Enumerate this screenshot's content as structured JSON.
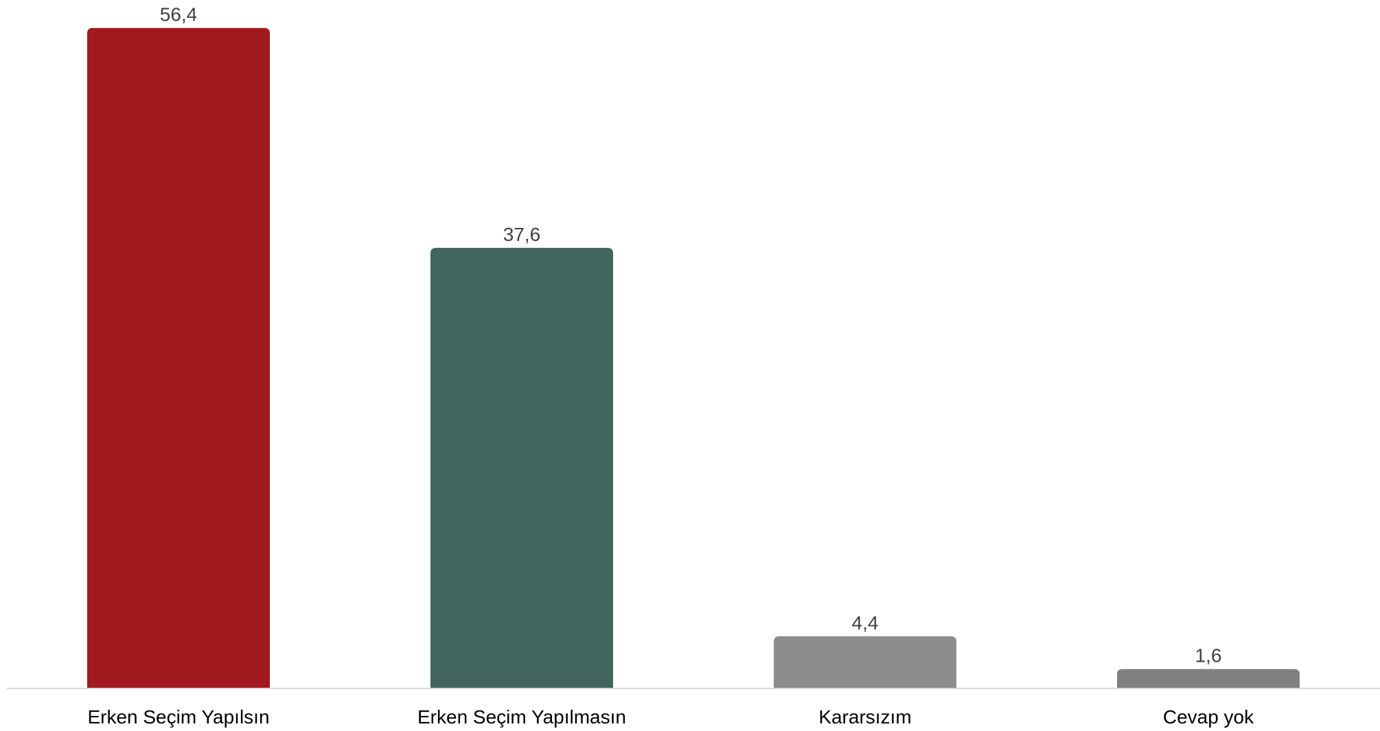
{
  "chart_data": {
    "type": "bar",
    "categories": [
      "Erken Seçim Yapılsın",
      "Erken Seçim Yapılmasın",
      "Kararsızım",
      "Cevap yok"
    ],
    "values": [
      56.4,
      37.6,
      4.4,
      1.6
    ],
    "value_labels": [
      "56,4",
      "37,6",
      "4,4",
      "1,6"
    ],
    "colors": [
      "#A11A1E",
      "#40655C",
      "#8C8C8C",
      "#808080"
    ],
    "title": "",
    "xlabel": "",
    "ylabel": "",
    "ylim": [
      0,
      57.5
    ],
    "grid": false,
    "legend": "none"
  }
}
